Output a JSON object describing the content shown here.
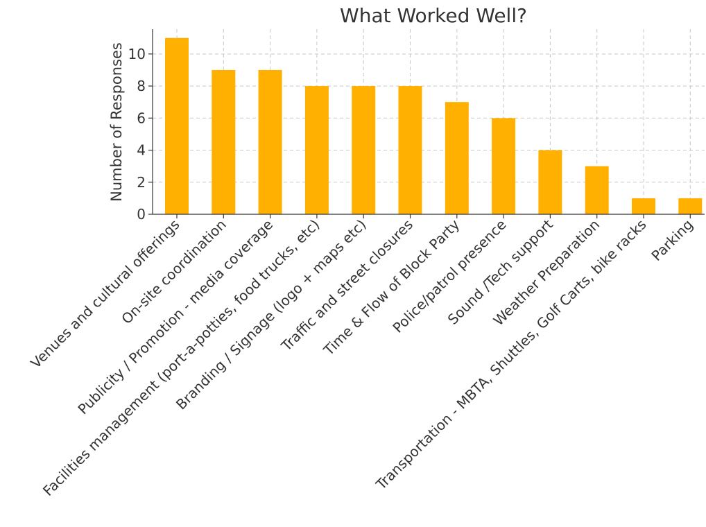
{
  "chart_data": {
    "type": "bar",
    "title": "What Worked Well?",
    "xlabel": "",
    "ylabel": "Number of Responses",
    "categories": [
      "Venues and cultural offerings",
      "On-site coordination",
      "Publicity / Promotion - media coverage",
      "Facilities management (port-a-potties, food trucks, etc)",
      "Branding / Signage (logo + maps etc)",
      "Traffic and street closures",
      "Time & Flow of Block Party",
      "Police/patrol presence",
      "Sound /Tech support",
      "Weather Preparation",
      "Transportation - MBTA, Shuttles, Golf Carts, bike racks",
      "Parking"
    ],
    "values": [
      11,
      9,
      9,
      8,
      8,
      8,
      7,
      6,
      4,
      3,
      1,
      1
    ],
    "ylim": [
      0,
      11.55
    ],
    "yticks": [
      0,
      2,
      4,
      6,
      8,
      10
    ],
    "grid": true,
    "bar_color": "#FFB000",
    "x_label_rotation_deg": -45
  }
}
